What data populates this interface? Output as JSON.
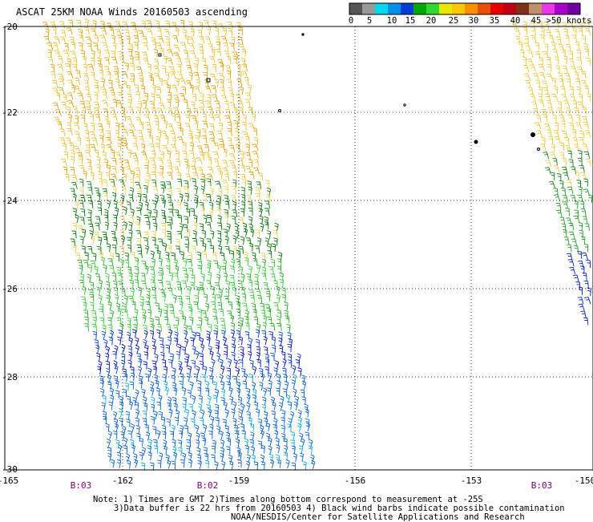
{
  "title": "ASCAT 25KM NOAA Winds 20160503 ascending",
  "colorbar": {
    "labels": [
      "0",
      "5",
      "10",
      "15",
      "20",
      "25",
      "30",
      "35",
      "40",
      "45",
      ">50 knots"
    ],
    "colors": [
      "#555555",
      "#999999",
      "#00d8f0",
      "#0090e8",
      "#003cd8",
      "#00a800",
      "#30d830",
      "#e8e800",
      "#f8c800",
      "#f89000",
      "#e85000",
      "#e80000",
      "#c00018",
      "#803018",
      "#c09068",
      "#e838e8",
      "#a800c8",
      "#7000a0"
    ]
  },
  "axes": {
    "lat_labels": [
      "-20",
      "-22",
      "-24",
      "-26",
      "-28",
      "-30"
    ],
    "lon_labels": [
      "-165",
      "-162",
      "-159",
      "-156",
      "-153",
      "-150"
    ],
    "time_labels": [
      "B:03",
      "B:02",
      "B:03"
    ]
  },
  "notes": {
    "line1": "Note: 1) Times are GMT 2)Times along bottom correspond to measurement at -25S",
    "line2": "3)Data buffer is 22 hrs from 20160503 4) Black wind barbs indicate possible contamination",
    "line3": "NOAA/NESDIS/Center for Satellite Applications and Research"
  },
  "swath_bands": [
    {
      "range": "-20 to -24",
      "speed": "20-25 knots",
      "color": "#f8c800"
    },
    {
      "range": "-24 to -25.5",
      "speed": "10-15 knots",
      "color": "#00a800"
    },
    {
      "range": "-25.5 to -27",
      "speed": "10-15 knots",
      "color": "#30d830"
    },
    {
      "range": "-27 to -28",
      "speed": "5-10 knots",
      "color": "#003cd8"
    },
    {
      "range": "-28 to -30",
      "speed": "5-10 knots",
      "color": "#0090e8"
    }
  ]
}
